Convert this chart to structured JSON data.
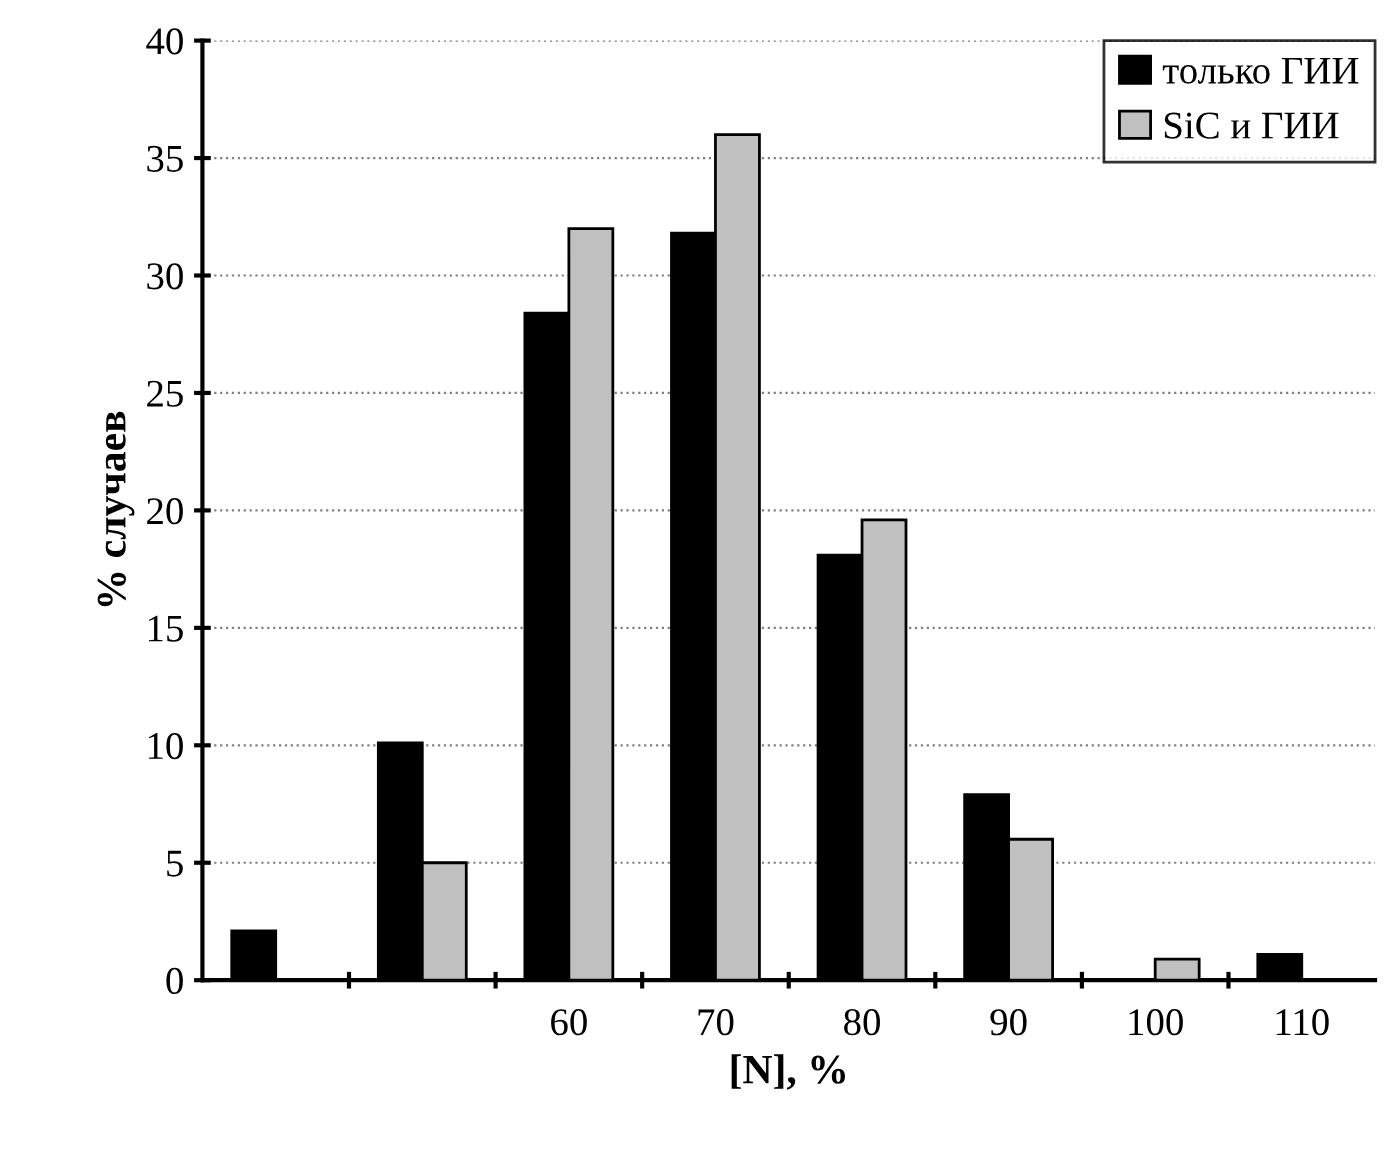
{
  "chart_data": {
    "type": "bar",
    "xlabel": "[N], %",
    "ylabel": "% случаев",
    "categories": [
      null,
      null,
      "60",
      "70",
      "80",
      "90",
      "100",
      "110"
    ],
    "series": [
      {
        "name": "только ГИИ",
        "color": "#000000",
        "values": [
          2.1,
          10.1,
          28.4,
          31.8,
          18.1,
          7.9,
          null,
          1.1
        ]
      },
      {
        "name": "SiC и ГИИ",
        "color": "#c0c0c0",
        "values": [
          null,
          5.0,
          32.0,
          36.0,
          19.6,
          6.0,
          0.9,
          null
        ]
      }
    ],
    "ylim": [
      0,
      40
    ],
    "yticks": [
      0,
      5,
      10,
      15,
      20,
      25,
      30,
      35,
      40
    ],
    "grid": "y",
    "legend": "top right"
  }
}
